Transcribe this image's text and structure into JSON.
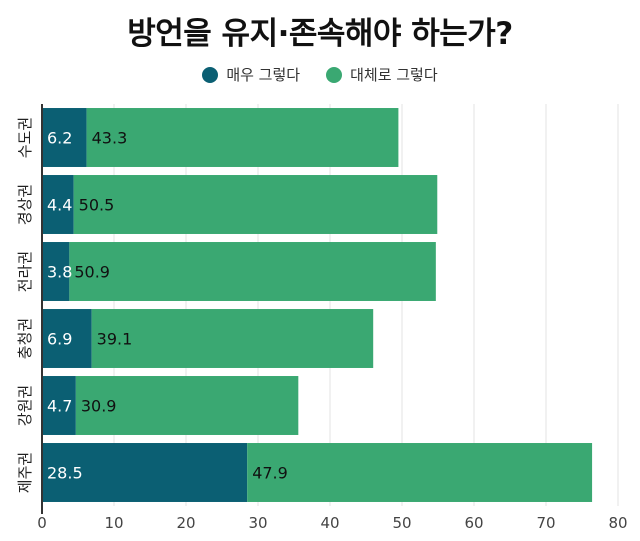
{
  "chart_data": {
    "type": "bar",
    "orientation": "horizontal",
    "stacked": true,
    "title": "방언을 유지·존속해야 하는가?",
    "categories": [
      "수도권",
      "경상권",
      "전라권",
      "충청권",
      "강원권",
      "제주권"
    ],
    "series": [
      {
        "name": "매우 그렇다",
        "color": "#0b5f73",
        "values": [
          6.2,
          4.4,
          3.8,
          6.9,
          4.7,
          28.5
        ]
      },
      {
        "name": "대체로 그렇다",
        "color": "#3aa872",
        "values": [
          43.3,
          50.5,
          50.9,
          39.1,
          30.9,
          47.9
        ]
      }
    ],
    "xlim": [
      0,
      80
    ],
    "xticks": [
      0,
      10,
      20,
      30,
      40,
      50,
      60,
      70,
      80
    ],
    "grid": true,
    "legend": "top"
  }
}
